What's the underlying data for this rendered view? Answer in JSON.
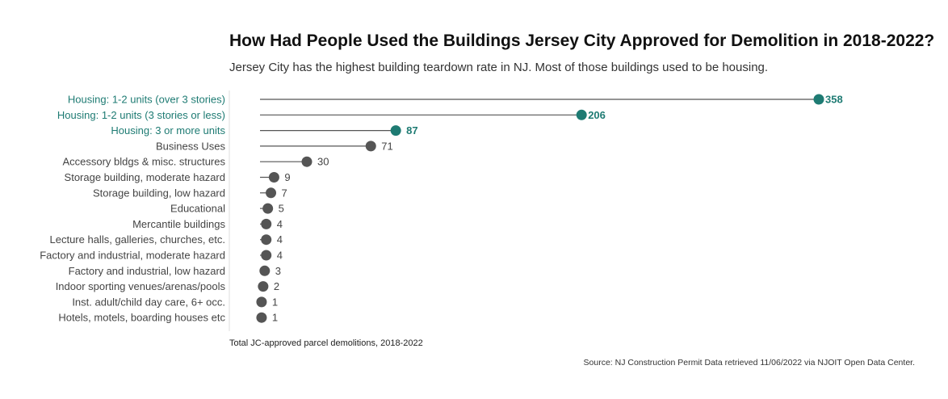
{
  "colors": {
    "highlight": "#1e7b73",
    "default": "#555555",
    "label_default": "#444444",
    "axis": "#dddddd"
  },
  "chart_data": {
    "type": "lollipop",
    "title": "How Had People Used the Buildings Jersey City Approved for Demolition in 2018-2022?",
    "subtitle": "Jersey City has the highest building teardown rate in NJ. Most of those buildings used to be housing.",
    "xlabel": "Total JC-approved parcel demolitions, 2018-2022",
    "ylabel": "",
    "xlim": [
      0,
      358
    ],
    "grid": false,
    "categories": [
      "Housing: 1-2 units (over 3 stories)",
      "Housing: 1-2 units (3 stories or less)",
      "Housing: 3 or more units",
      "Business Uses",
      "Accessory bldgs & misc. structures",
      "Storage building, moderate hazard",
      "Storage building, low hazard",
      "Educational",
      "Mercantile buildings",
      "Lecture halls, galleries, churches, etc.",
      "Factory and industrial, moderate hazard",
      "Factory and industrial, low hazard",
      "Indoor sporting venues/arenas/pools",
      "Inst. adult/child day care, 6+ occ.",
      "Hotels, motels, boarding houses etc"
    ],
    "values": [
      358,
      206,
      87,
      71,
      30,
      9,
      7,
      5,
      4,
      4,
      4,
      3,
      2,
      1,
      1
    ],
    "highlighted": [
      true,
      true,
      true,
      false,
      false,
      false,
      false,
      false,
      false,
      false,
      false,
      false,
      false,
      false,
      false
    ]
  },
  "source": "Source: NJ Construction Permit Data retrieved 11/06/2022 via NJOIT Open Data Center."
}
